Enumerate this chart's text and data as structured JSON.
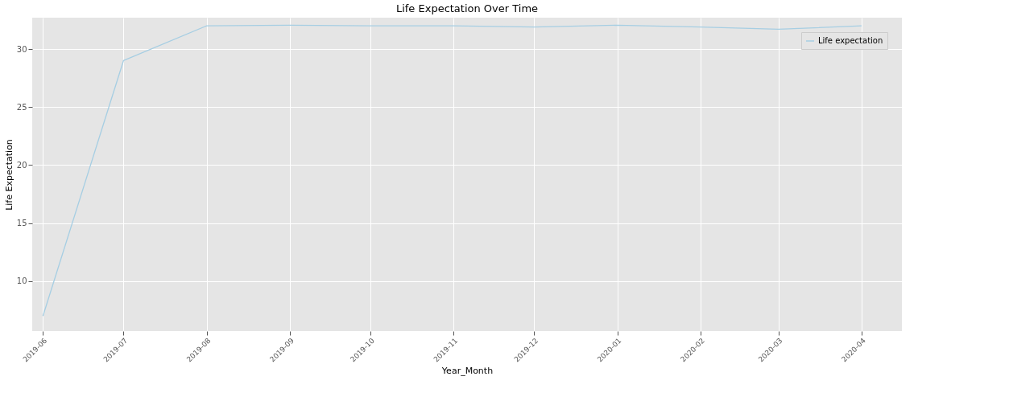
{
  "chart_data": {
    "type": "line",
    "title": "Life Expectation Over Time",
    "xlabel": "Year_Month",
    "ylabel": "Life Expectation",
    "x": [
      "2019-06",
      "2019-07",
      "2019-08",
      "2019-09",
      "2019-10",
      "2019-11",
      "2019-12",
      "2020-01",
      "2020-02",
      "2020-03",
      "2020-04"
    ],
    "series": [
      {
        "name": "Life expectation",
        "color": "#a6cee3",
        "values": [
          7.0,
          29.0,
          32.0,
          32.05,
          32.0,
          32.0,
          31.9,
          32.05,
          31.9,
          31.7,
          32.0
        ]
      }
    ],
    "xlim": [
      "2019-05-28",
      "2020-04-16"
    ],
    "xticks": [
      "2019-06",
      "2019-07",
      "2019-08",
      "2019-09",
      "2019-10",
      "2019-11",
      "2019-12",
      "2020-01",
      "2020-02",
      "2020-03",
      "2020-04"
    ],
    "ylim": [
      5.7,
      32.7
    ],
    "yticks": [
      10,
      15,
      20,
      25,
      30
    ],
    "grid": true,
    "legend": "top right",
    "marker": "none",
    "line_style": "solid"
  }
}
